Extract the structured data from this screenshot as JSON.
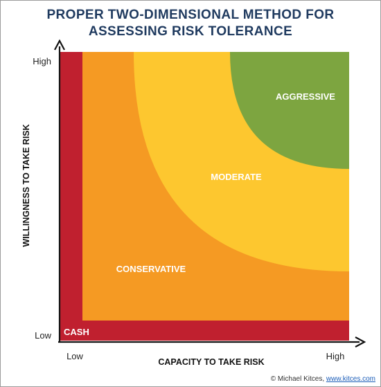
{
  "title": {
    "line1": "PROPER TWO-DIMENSIONAL METHOD FOR",
    "line2": "ASSESSING RISK TOLERANCE"
  },
  "axes": {
    "y_label": "WILLINGNESS TO TAKE RISK",
    "x_label": "CAPACITY TO TAKE RISK",
    "y_low": "Low",
    "y_high": "High",
    "x_low": "Low",
    "x_high": "High"
  },
  "zones": {
    "cash": "CASH",
    "conservative": "CONSERVATIVE",
    "moderate": "MODERATE",
    "aggressive": "AGGRESSIVE"
  },
  "colors": {
    "title": "#1f3a5f",
    "cash": "#c0202f",
    "conservative": "#f59a23",
    "moderate": "#fdc72f",
    "aggressive": "#7da540"
  },
  "footer": {
    "credit": "© Michael Kitces, ",
    "link": "www.kitces.com"
  }
}
